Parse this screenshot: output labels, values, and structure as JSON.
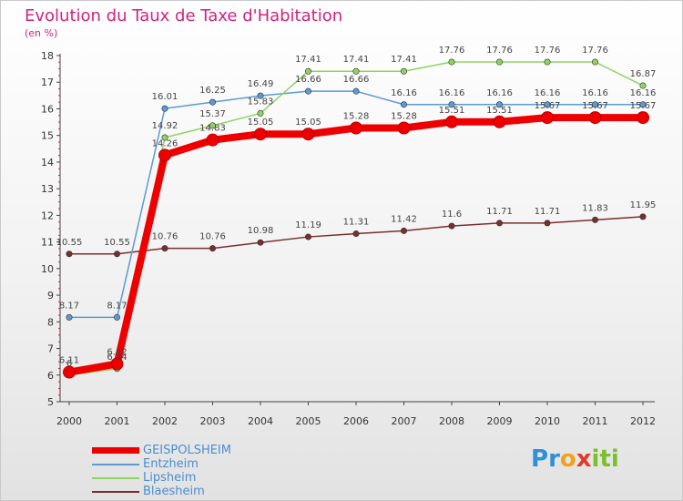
{
  "header": {
    "title": "Evolution du Taux de Taxe d'Habitation",
    "subtitle": "(en %)"
  },
  "logo": {
    "text": "Proxiti",
    "letters": [
      "P",
      "r",
      "o",
      "x",
      "i",
      "t",
      "i"
    ],
    "colors": [
      "#2f8fd8",
      "#2f8fd8",
      "#f0a21a",
      "#e23a2b",
      "#7bbf2b",
      "#7bbf2b",
      "#7bbf2b"
    ]
  },
  "chart_data": {
    "type": "line",
    "title": "Evolution du Taux de Taxe d'Habitation",
    "ylabel": "(en %)",
    "xlabel": "",
    "ylim": [
      5,
      18
    ],
    "yticks": [
      "5",
      "6",
      "7",
      "8",
      "9",
      "10",
      "11",
      "12",
      "13",
      "14",
      "15",
      "16",
      "17",
      "18"
    ],
    "x": [
      "2000",
      "2001",
      "2002",
      "2003",
      "2004",
      "2005",
      "2006",
      "2007",
      "2008",
      "2009",
      "2010",
      "2011",
      "2012"
    ],
    "grid": false,
    "series": [
      {
        "name": "GEISPOLSHEIM",
        "color": "#ee0000",
        "values": [
          6.11,
          6.42,
          14.26,
          14.83,
          15.05,
          15.05,
          15.28,
          15.28,
          15.51,
          15.51,
          15.67,
          15.67,
          15.67
        ],
        "labels": [
          "6.11",
          "6.42",
          "14.26",
          "14.83",
          "15.05",
          "15.05",
          "15.28",
          "15.28",
          "15.51",
          "15.51",
          "15.67",
          "15.67",
          "15.67"
        ]
      },
      {
        "name": "Entzheim",
        "color": "#5b9bd5",
        "values": [
          8.17,
          8.17,
          16.01,
          16.25,
          16.49,
          16.66,
          16.66,
          16.16,
          16.16,
          16.16,
          16.16,
          16.16,
          16.16
        ],
        "labels": [
          "8.17",
          "8.17",
          "16.01",
          "16.25",
          "16.49",
          "16.66",
          "16.66",
          "16.16",
          "16.16",
          "16.16",
          "16.16",
          "16.16",
          "16.16"
        ]
      },
      {
        "name": "Lipsheim",
        "color": "#8ed460",
        "values": [
          6,
          6.24,
          14.92,
          15.37,
          15.83,
          17.41,
          17.41,
          17.41,
          17.76,
          17.76,
          17.76,
          17.76,
          16.87
        ],
        "labels": [
          "6",
          "6.24",
          "14.92",
          "15.37",
          "15.83",
          "17.41",
          "17.41",
          "17.41",
          "17.76",
          "17.76",
          "17.76",
          "17.76",
          "16.87"
        ]
      },
      {
        "name": "Blaesheim",
        "color": "#7a2e2e",
        "values": [
          10.55,
          10.55,
          10.76,
          10.76,
          10.98,
          11.19,
          11.31,
          11.42,
          11.6,
          11.71,
          11.71,
          11.83,
          11.95
        ],
        "labels": [
          "10.55",
          "10.55",
          "10.76",
          "10.76",
          "10.98",
          "11.19",
          "11.31",
          "11.42",
          "11.6",
          "11.71",
          "11.71",
          "11.83",
          "11.95"
        ]
      }
    ]
  }
}
